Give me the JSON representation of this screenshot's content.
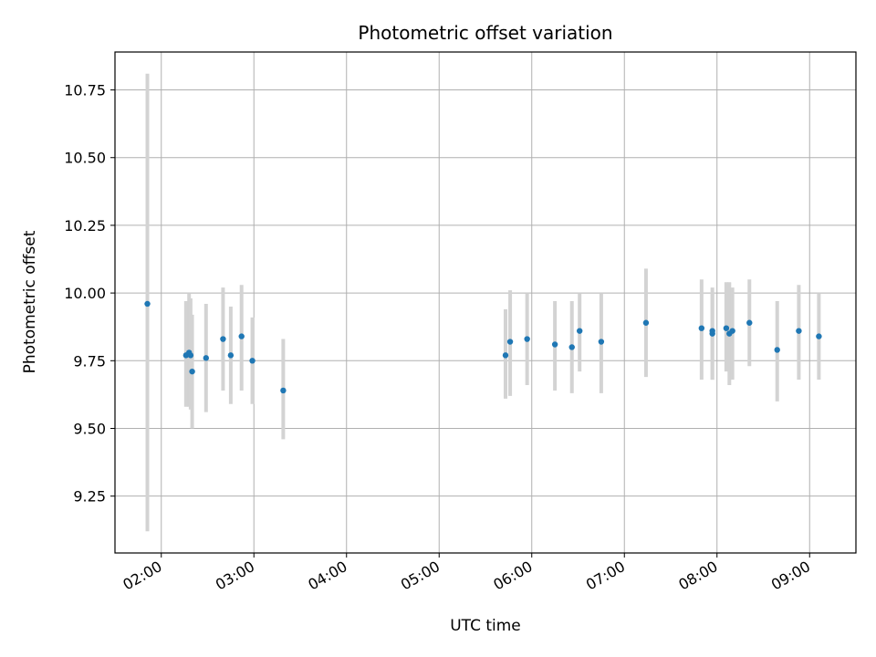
{
  "chart_data": {
    "type": "scatter",
    "title": "Photometric offset variation",
    "xlabel": "UTC time",
    "ylabel": "Photometric offset",
    "x_unit": "UTC hour of day",
    "xlim": [
      "01:30",
      "09:30"
    ],
    "ylim": [
      9.04,
      10.89
    ],
    "x_ticks": [
      "02:00",
      "03:00",
      "04:00",
      "05:00",
      "06:00",
      "07:00",
      "08:00",
      "09:00"
    ],
    "y_ticks": [
      "9.25",
      "9.50",
      "9.75",
      "10.00",
      "10.25",
      "10.50",
      "10.75"
    ],
    "grid": true,
    "x_tick_rotation_deg": 30,
    "colors": {
      "point": "#1f77b4",
      "errorbar": "#d3d3d3",
      "grid": "#b0b0b0",
      "axes": "#000000"
    },
    "series": [
      {
        "points": [
          {
            "x": "01:51",
            "y": 9.96,
            "yerr_low": 9.12,
            "yerr_high": 10.81
          },
          {
            "x": "02:16",
            "y": 9.77,
            "yerr_low": 9.58,
            "yerr_high": 9.97
          },
          {
            "x": "02:18",
            "y": 9.78,
            "yerr_low": 9.58,
            "yerr_high": 10.0
          },
          {
            "x": "02:19",
            "y": 9.77,
            "yerr_low": 9.57,
            "yerr_high": 9.98
          },
          {
            "x": "02:20",
            "y": 9.71,
            "yerr_low": 9.5,
            "yerr_high": 9.92
          },
          {
            "x": "02:29",
            "y": 9.76,
            "yerr_low": 9.56,
            "yerr_high": 9.96
          },
          {
            "x": "02:40",
            "y": 9.83,
            "yerr_low": 9.64,
            "yerr_high": 10.02
          },
          {
            "x": "02:45",
            "y": 9.77,
            "yerr_low": 9.59,
            "yerr_high": 9.95
          },
          {
            "x": "02:52",
            "y": 9.84,
            "yerr_low": 9.64,
            "yerr_high": 10.03
          },
          {
            "x": "02:59",
            "y": 9.75,
            "yerr_low": 9.59,
            "yerr_high": 9.91
          },
          {
            "x": "03:19",
            "y": 9.64,
            "yerr_low": 9.46,
            "yerr_high": 9.83
          },
          {
            "x": "05:43",
            "y": 9.77,
            "yerr_low": 9.61,
            "yerr_high": 9.94
          },
          {
            "x": "05:46",
            "y": 9.82,
            "yerr_low": 9.62,
            "yerr_high": 10.01
          },
          {
            "x": "05:57",
            "y": 9.83,
            "yerr_low": 9.66,
            "yerr_high": 10.0
          },
          {
            "x": "06:15",
            "y": 9.81,
            "yerr_low": 9.64,
            "yerr_high": 9.97
          },
          {
            "x": "06:26",
            "y": 9.8,
            "yerr_low": 9.63,
            "yerr_high": 9.97
          },
          {
            "x": "06:31",
            "y": 9.86,
            "yerr_low": 9.71,
            "yerr_high": 10.0
          },
          {
            "x": "06:45",
            "y": 9.82,
            "yerr_low": 9.63,
            "yerr_high": 10.0
          },
          {
            "x": "07:14",
            "y": 9.89,
            "yerr_low": 9.69,
            "yerr_high": 10.09
          },
          {
            "x": "07:50",
            "y": 9.87,
            "yerr_low": 9.68,
            "yerr_high": 10.05
          },
          {
            "x": "07:57",
            "y": 9.86,
            "yerr_low": 9.68,
            "yerr_high": 10.02
          },
          {
            "x": "07:57",
            "y": 9.85,
            "yerr_low": 9.68,
            "yerr_high": 10.0
          },
          {
            "x": "08:06",
            "y": 9.87,
            "yerr_low": 9.71,
            "yerr_high": 10.04
          },
          {
            "x": "08:08",
            "y": 9.85,
            "yerr_low": 9.66,
            "yerr_high": 10.04
          },
          {
            "x": "08:10",
            "y": 9.86,
            "yerr_low": 9.68,
            "yerr_high": 10.02
          },
          {
            "x": "08:21",
            "y": 9.89,
            "yerr_low": 9.73,
            "yerr_high": 10.05
          },
          {
            "x": "08:39",
            "y": 9.79,
            "yerr_low": 9.6,
            "yerr_high": 9.97
          },
          {
            "x": "08:53",
            "y": 9.86,
            "yerr_low": 9.68,
            "yerr_high": 10.03
          },
          {
            "x": "09:06",
            "y": 9.84,
            "yerr_low": 9.68,
            "yerr_high": 10.0
          }
        ]
      }
    ]
  }
}
